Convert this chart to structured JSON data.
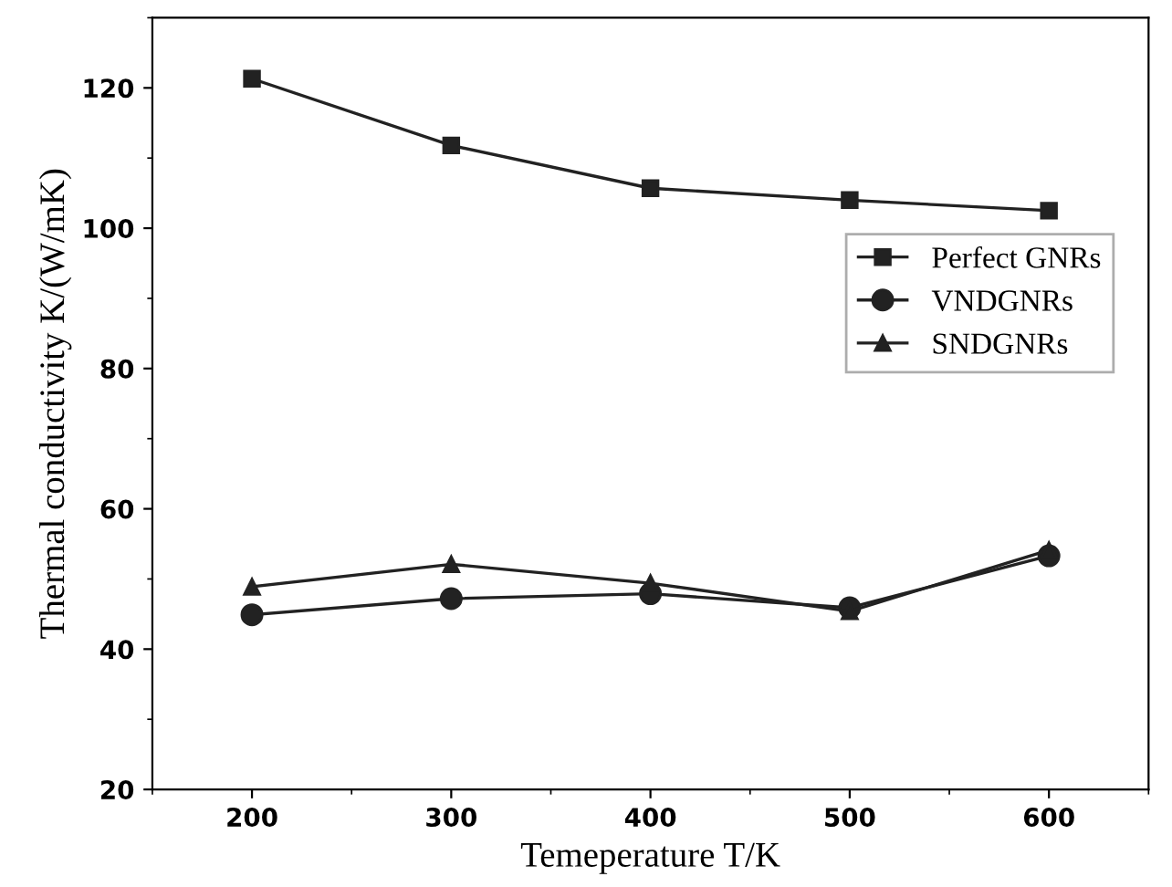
{
  "chart_data": {
    "type": "line",
    "xlabel": "Temeperature T/K",
    "ylabel": "Thermal conductivity K/(W/mK)",
    "x": [
      200,
      300,
      400,
      500,
      600
    ],
    "series": [
      {
        "name": "Perfect GNRs",
        "color": "#222222",
        "marker": "square",
        "values": [
          121.3,
          111.8,
          105.7,
          104.0,
          102.5
        ]
      },
      {
        "name": "VNDGNRs",
        "color": "#222222",
        "marker": "circle",
        "values": [
          44.9,
          47.2,
          47.9,
          45.9,
          53.3
        ]
      },
      {
        "name": "SNDGNRs",
        "color": "#222222",
        "marker": "triangle",
        "values": [
          48.9,
          52.1,
          49.4,
          45.4,
          54.1
        ]
      }
    ],
    "xlim": [
      150,
      650
    ],
    "ylim": [
      20,
      130
    ],
    "xticks": [
      200,
      300,
      400,
      500,
      600
    ],
    "yticks": [
      20,
      40,
      60,
      80,
      100,
      120
    ],
    "grid": false,
    "legend": "right",
    "line_style": "solid"
  }
}
